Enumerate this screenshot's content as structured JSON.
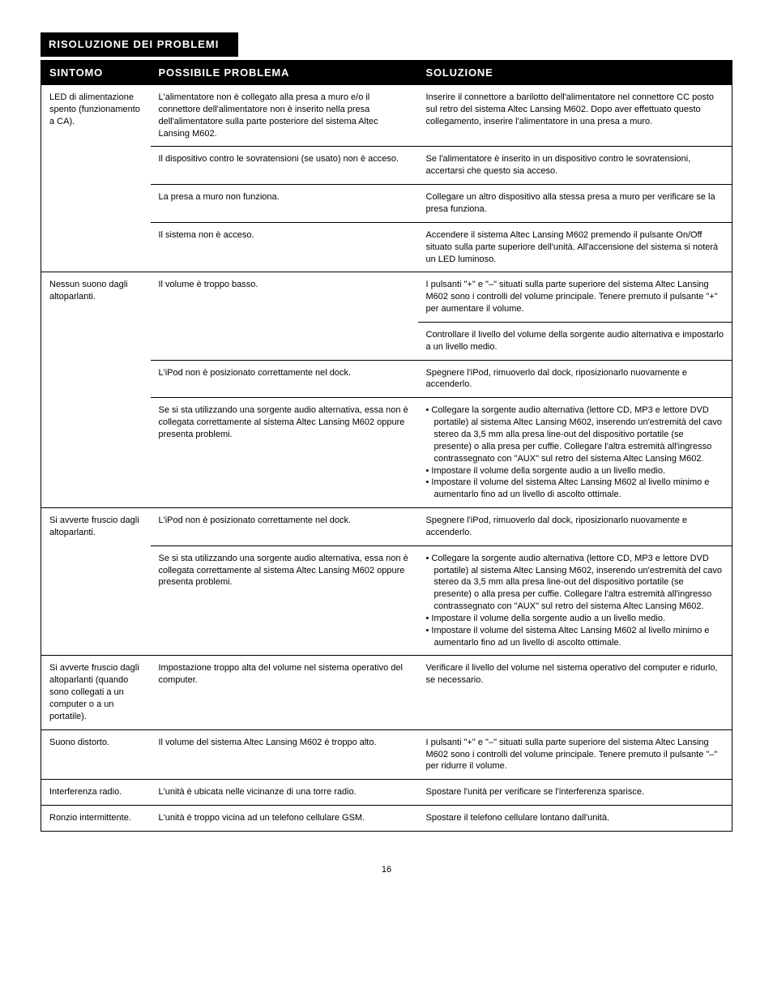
{
  "section_title": "RISOLUZIONE DEI PROBLEMI",
  "page_number": "16",
  "headers": {
    "c1": "SINTOMO",
    "c2": "POSSIBILE PROBLEMA",
    "c3": "SOLUZIONE"
  },
  "groups": [
    {
      "symptom": "LED di alimentazione spento (funzionamento a CA).",
      "rows": [
        {
          "problem": "L'alimentatore non è collegato alla presa a muro e/o il connettore dell'alimentatore non è inserito nella presa dell'alimentatore sulla parte posteriore del sistema Altec Lansing M602.",
          "solution": "Inserire il connettore a barilotto dell'alimentatore nel connettore CC posto sul retro del sistema Altec Lansing M602. Dopo aver effettuato questo collegamento, inserire l'alimentatore in una presa a muro."
        },
        {
          "problem": "Il dispositivo contro le sovratensioni (se usato) non è acceso.",
          "solution": "Se l'alimentatore è inserito in un dispositivo contro le sovratensioni, accertarsi che questo sia acceso."
        },
        {
          "problem": "La presa a muro non funziona.",
          "solution": "Collegare un altro dispositivo alla stessa presa a muro per verificare se la presa funziona."
        },
        {
          "problem": "Il sistema non è acceso.",
          "solution": "Accendere il sistema Altec Lansing M602 premendo il pulsante On/Off situato sulla parte superiore dell'unità. All'accensione del sistema si noterà un LED luminoso."
        }
      ]
    },
    {
      "symptom": "Nessun suono dagli altoparlanti.",
      "rows": [
        {
          "problem": "Il volume è troppo basso.",
          "solution": "I pulsanti \"+\" e \"–\" situati sulla parte superiore del sistema Altec Lansing M602 sono i controlli del volume principale. Tenere premuto il pulsante \"+\" per aumentare il volume.",
          "extra_solutions": [
            "Controllare il livello del volume della sorgente audio alternativa e impostarlo a un livello medio."
          ]
        },
        {
          "problem": "L'iPod non è posizionato correttamente nel dock.",
          "solution": "Spegnere l'iPod, rimuoverlo dal dock, riposizionarlo nuovamente e accenderlo."
        },
        {
          "problem": "Se si sta utilizzando una sorgente audio alternativa, essa non è collegata correttamente al sistema Altec Lansing M602 oppure presenta problemi.",
          "solution_list": [
            "Collegare la sorgente audio alternativa (lettore CD, MP3 e lettore DVD portatile) al sistema Altec Lansing M602, inserendo un'estremità del cavo stereo da 3,5 mm alla presa line-out del dispositivo portatile (se presente) o alla presa per cuffie. Collegare l'altra estremità all'ingresso contrassegnato con \"AUX\" sul retro del sistema Altec Lansing M602.",
            "Impostare il volume della sorgente audio a un livello medio.",
            "Impostare il volume del sistema Altec Lansing M602 al livello minimo e aumentarlo fino ad un livello di ascolto ottimale."
          ]
        }
      ]
    },
    {
      "symptom": "Si avverte fruscio dagli altoparlanti.",
      "rows": [
        {
          "problem": "L'iPod non è posizionato correttamente nel dock.",
          "solution": "Spegnere l'iPod, rimuoverlo dal dock, riposizionarlo nuovamente e accenderlo."
        },
        {
          "problem": "Se si sta utilizzando una sorgente audio alternativa, essa non è collegata correttamente al sistema Altec Lansing M602 oppure presenta problemi.",
          "solution_list": [
            "Collegare la sorgente audio alternativa (lettore CD, MP3 e lettore DVD portatile) al sistema Altec Lansing M602, inserendo un'estremità del cavo stereo da 3,5 mm alla presa line-out del dispositivo portatile (se presente) o alla presa per cuffie. Collegare l'altra estremità all'ingresso contrassegnato con \"AUX\" sul retro del sistema Altec Lansing M602.",
            "Impostare il volume della sorgente audio a un livello medio.",
            "Impostare il volume del sistema Altec Lansing M602 al livello minimo e aumentarlo fino ad un livello di ascolto ottimale."
          ]
        }
      ]
    },
    {
      "symptom": "Si avverte fruscio dagli altoparlanti (quando sono collegati a un computer o a un portatile).",
      "rows": [
        {
          "problem": "Impostazione troppo alta del volume nel sistema operativo del computer.",
          "solution": "Verificare il livello del volume nel sistema operativo del computer e ridurlo, se necessario."
        }
      ]
    },
    {
      "symptom": "Suono distorto.",
      "rows": [
        {
          "problem": "Il volume del sistema Altec Lansing M602 è troppo alto.",
          "solution": "I pulsanti \"+\" e \"–\" situati sulla parte superiore del sistema Altec Lansing M602 sono i controlli del volume principale. Tenere premuto il pulsante \"–\" per ridurre il volume."
        }
      ]
    },
    {
      "symptom": "Interferenza radio.",
      "rows": [
        {
          "problem": "L'unità è ubicata nelle vicinanze di una torre radio.",
          "solution": "Spostare l'unità per verificare se l'interferenza sparisce."
        }
      ]
    },
    {
      "symptom": "Ronzio intermittente.",
      "rows": [
        {
          "problem": "L'unità è troppo vicina ad un telefono cellulare GSM.",
          "solution": "Spostare il telefono cellulare lontano dall'unità."
        }
      ]
    }
  ]
}
